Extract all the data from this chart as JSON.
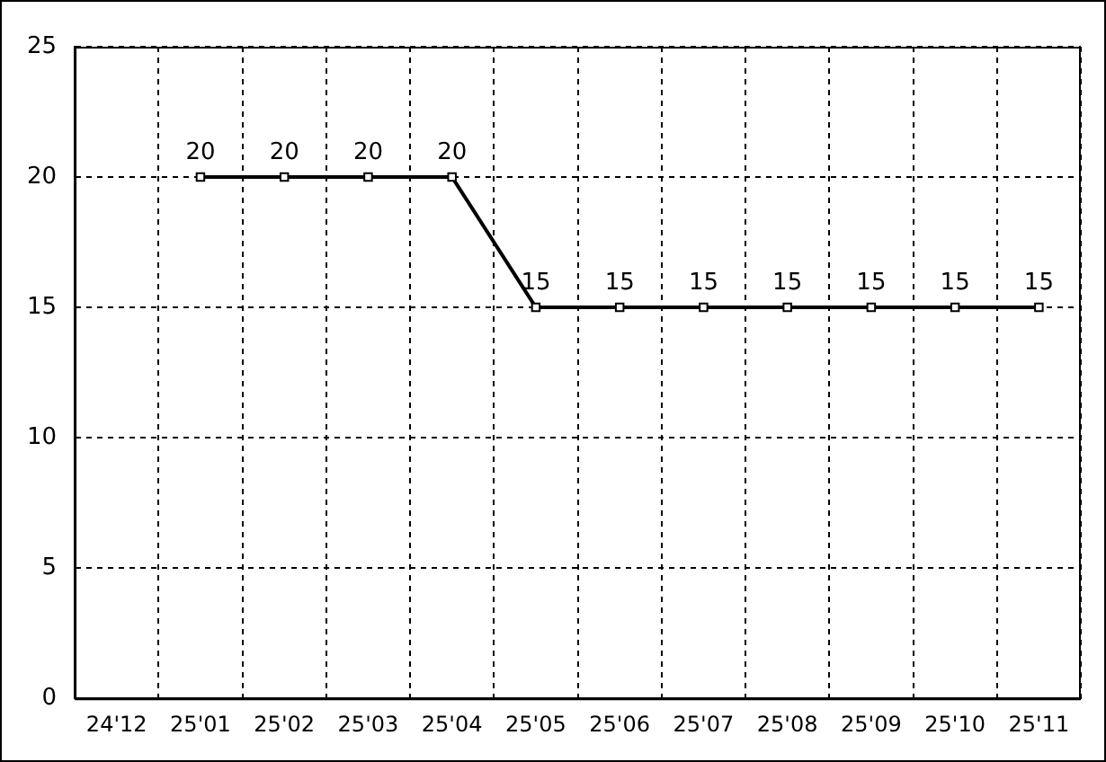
{
  "chart_data": {
    "type": "line",
    "categories": [
      "24'12",
      "25'01",
      "25'02",
      "25'03",
      "25'04",
      "25'05",
      "25'06",
      "25'07",
      "25'08",
      "25'09",
      "25'10",
      "25'11"
    ],
    "series": [
      {
        "color": "#000000",
        "values": [
          null,
          20,
          20,
          20,
          20,
          15,
          15,
          15,
          15,
          15,
          15,
          15
        ]
      }
    ],
    "ylim": [
      0,
      25
    ],
    "yticks": [
      0,
      5,
      10,
      15,
      20,
      25
    ],
    "grid": true,
    "legend": false,
    "marker": "square",
    "line_style": "solid",
    "data_labels": true
  }
}
